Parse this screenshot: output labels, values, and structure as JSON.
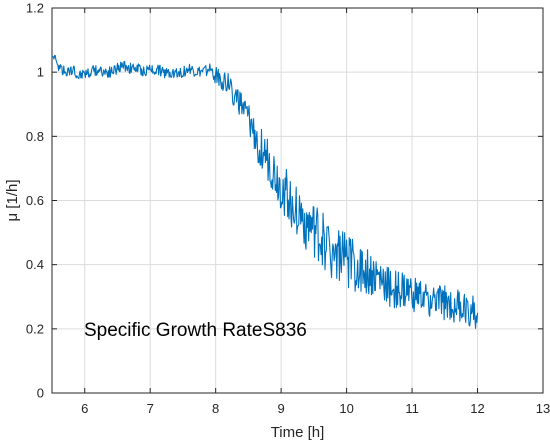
{
  "chart_data": {
    "type": "line",
    "title": "",
    "xlabel": "Time [h]",
    "ylabel": "μ [1/h]",
    "xlim": [
      5.5,
      13
    ],
    "ylim": [
      0,
      1.2
    ],
    "xticks": [
      6,
      7,
      8,
      9,
      10,
      11,
      12,
      13
    ],
    "yticks": [
      0,
      0.2,
      0.4,
      0.6,
      0.8,
      1,
      1.2
    ],
    "xtick_labels": [
      "6",
      "7",
      "8",
      "9",
      "10",
      "11",
      "12",
      "13"
    ],
    "ytick_labels": [
      "0",
      "0.2",
      "0.4",
      "0.6",
      "0.8",
      "1",
      "1.2"
    ],
    "grid": true,
    "line_color": "#0072BD",
    "annotation": "Specific Growth RateS836",
    "series": [
      {
        "x": [
          5.5,
          5.6,
          5.7,
          5.8,
          5.9,
          6.0,
          6.1,
          6.2,
          6.3,
          6.4,
          6.5,
          6.6,
          6.7,
          6.8,
          6.9,
          7.0,
          7.1,
          7.2,
          7.3,
          7.4,
          7.5,
          7.6,
          7.7,
          7.8,
          7.9,
          8.0,
          8.1,
          8.2,
          8.3,
          8.4,
          8.5,
          8.6,
          8.7,
          8.8,
          8.9,
          9.0,
          9.1,
          9.2,
          9.3,
          9.4,
          9.5,
          9.6,
          9.7,
          9.8,
          9.9,
          10.0,
          10.1,
          10.2,
          10.3,
          10.4,
          10.5,
          10.6,
          10.7,
          10.8,
          10.9,
          11.0,
          11.1,
          11.2,
          11.3,
          11.4,
          11.5,
          11.6,
          11.7,
          11.8,
          11.9,
          12.0
        ],
        "y": [
          1.05,
          1.02,
          1.0,
          1.01,
          0.99,
          1.0,
          1.0,
          1.01,
          1.0,
          1.0,
          1.01,
          1.02,
          1.01,
          1.01,
          1.0,
          1.01,
          1.01,
          1.0,
          1.0,
          1.0,
          1.0,
          1.01,
          1.0,
          1.0,
          1.01,
          0.99,
          0.98,
          0.96,
          0.93,
          0.89,
          0.85,
          0.8,
          0.76,
          0.72,
          0.68,
          0.64,
          0.61,
          0.58,
          0.55,
          0.52,
          0.5,
          0.48,
          0.46,
          0.44,
          0.43,
          0.42,
          0.4,
          0.39,
          0.37,
          0.36,
          0.35,
          0.34,
          0.33,
          0.32,
          0.31,
          0.31,
          0.3,
          0.29,
          0.29,
          0.28,
          0.28,
          0.27,
          0.27,
          0.26,
          0.26,
          0.25
        ],
        "noise": [
          0.01,
          0.01,
          0.01,
          0.01,
          0.01,
          0.01,
          0.01,
          0.01,
          0.01,
          0.01,
          0.01,
          0.01,
          0.01,
          0.01,
          0.01,
          0.01,
          0.01,
          0.01,
          0.01,
          0.01,
          0.01,
          0.01,
          0.01,
          0.01,
          0.01,
          0.015,
          0.02,
          0.02,
          0.025,
          0.025,
          0.03,
          0.035,
          0.035,
          0.04,
          0.04,
          0.045,
          0.045,
          0.045,
          0.05,
          0.05,
          0.05,
          0.05,
          0.05,
          0.05,
          0.05,
          0.05,
          0.045,
          0.045,
          0.045,
          0.04,
          0.04,
          0.04,
          0.035,
          0.035,
          0.035,
          0.03,
          0.03,
          0.03,
          0.03,
          0.03,
          0.03,
          0.03,
          0.03,
          0.03,
          0.03,
          0.03
        ]
      }
    ]
  }
}
